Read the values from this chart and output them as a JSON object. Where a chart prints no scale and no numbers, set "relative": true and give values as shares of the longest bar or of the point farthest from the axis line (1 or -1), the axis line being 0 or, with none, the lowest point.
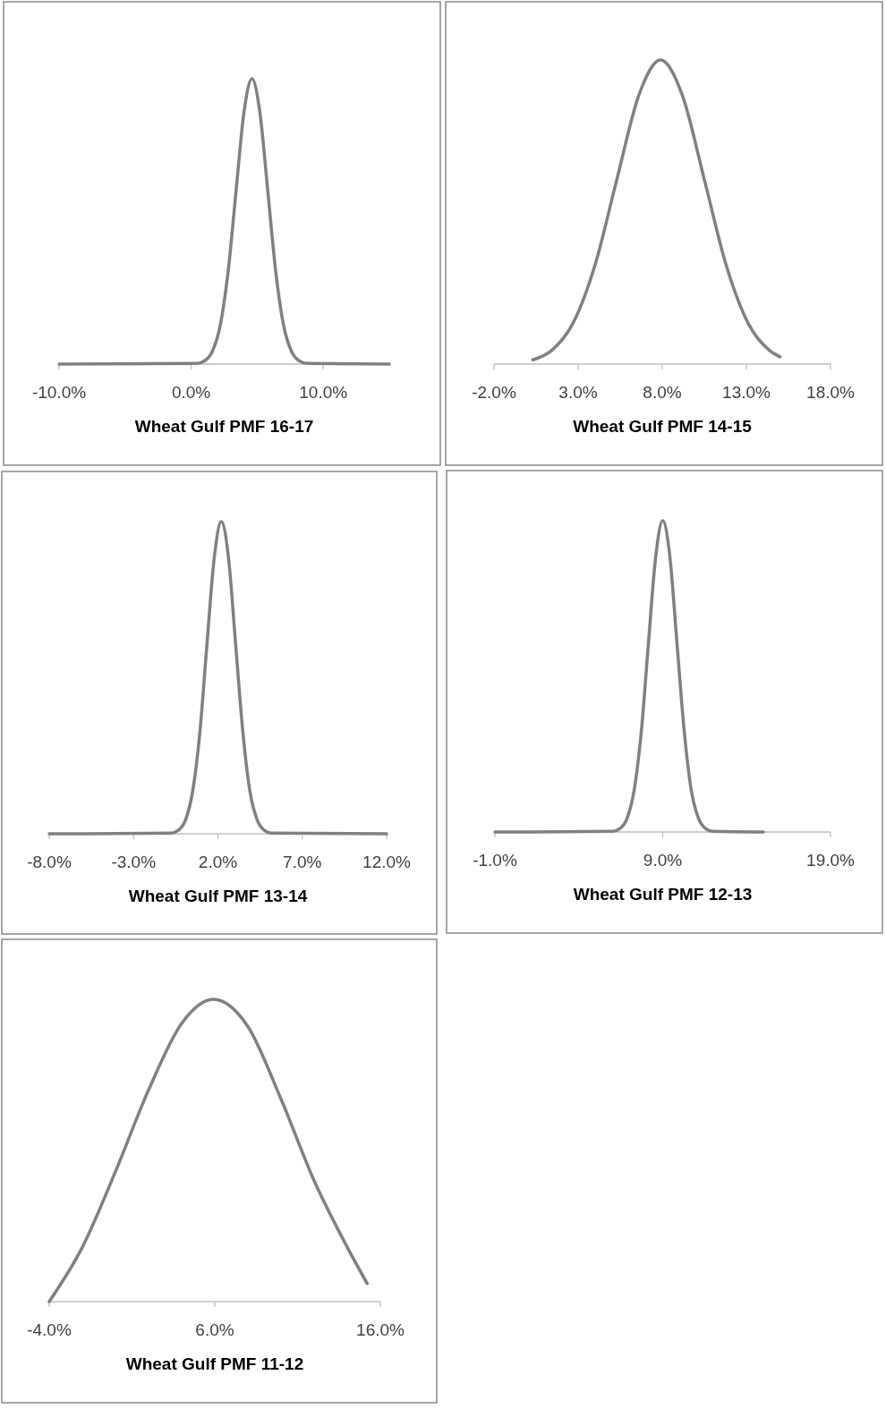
{
  "chart_data": [
    {
      "type": "line",
      "relative": true,
      "xlabel": "Wheat Gulf PMF 16-17",
      "xlim": [
        -10,
        15
      ],
      "xticks": [
        {
          "value": -10,
          "label": "-10.0%"
        },
        {
          "value": 0,
          "label": "0.0%"
        },
        {
          "value": 10,
          "label": "10.0%"
        }
      ],
      "series": [
        {
          "color": "#808080",
          "x": [
            -10,
            0.4,
            1.0,
            1.6,
            2.2,
            2.8,
            3.4,
            4.0,
            4.6,
            5.2,
            5.8,
            6.4,
            7.0,
            7.6,
            8.2,
            8.8,
            15
          ],
          "values": [
            0,
            0.002,
            0.011,
            0.044,
            0.135,
            0.325,
            0.607,
            0.883,
            1,
            0.883,
            0.607,
            0.325,
            0.135,
            0.044,
            0.011,
            0.002,
            0
          ]
        }
      ]
    },
    {
      "type": "line",
      "relative": true,
      "xlabel": "Wheat Gulf PMF 14-15",
      "xlim": [
        -2,
        18
      ],
      "xticks": [
        {
          "value": -2,
          "label": "-2.0%"
        },
        {
          "value": 3,
          "label": "3.0%"
        },
        {
          "value": 8,
          "label": "8.0%"
        },
        {
          "value": 13,
          "label": "13.0%"
        },
        {
          "value": 18,
          "label": "18.0%"
        }
      ],
      "series": [
        {
          "color": "#808080",
          "x": [
            0.3,
            1.4,
            2.7,
            4.0,
            5.3,
            6.6,
            7.9,
            9.2,
            10.5,
            11.8,
            13.1,
            14.4,
            15.0
          ],
          "values": [
            0.014,
            0.044,
            0.135,
            0.325,
            0.607,
            0.883,
            1,
            0.883,
            0.607,
            0.325,
            0.135,
            0.044,
            0.024
          ]
        }
      ]
    },
    {
      "type": "line",
      "relative": true,
      "xlabel": "Wheat Gulf PMF 13-14",
      "xlim": [
        -8,
        12
      ],
      "xticks": [
        {
          "value": -8,
          "label": "-8.0%"
        },
        {
          "value": -3,
          "label": "-3.0%"
        },
        {
          "value": 2,
          "label": "2.0%"
        },
        {
          "value": 7,
          "label": "7.0%"
        },
        {
          "value": 12,
          "label": "12.0%"
        }
      ],
      "series": [
        {
          "color": "#808080",
          "x": [
            -8,
            -0.78,
            -0.35,
            0.08,
            0.5,
            0.93,
            1.35,
            1.78,
            2.2,
            2.63,
            3.05,
            3.48,
            3.9,
            4.33,
            4.75,
            5.18,
            12
          ],
          "values": [
            0,
            0.002,
            0.011,
            0.044,
            0.135,
            0.325,
            0.607,
            0.883,
            1,
            0.883,
            0.607,
            0.325,
            0.135,
            0.044,
            0.011,
            0.002,
            0
          ]
        }
      ]
    },
    {
      "type": "line",
      "relative": true,
      "xlabel": "Wheat Gulf PMF 12-13",
      "xlim": [
        -1,
        19
      ],
      "xticks": [
        {
          "value": -1,
          "label": "-1.0%"
        },
        {
          "value": 9,
          "label": "9.0%"
        },
        {
          "value": 19,
          "label": "19.0%"
        }
      ],
      "series": [
        {
          "color": "#808080",
          "x": [
            -1,
            6.03,
            6.45,
            6.88,
            7.3,
            7.73,
            8.15,
            8.58,
            9.0,
            9.43,
            9.85,
            10.28,
            10.7,
            11.13,
            11.55,
            11.98,
            15
          ],
          "values": [
            0,
            0.002,
            0.011,
            0.044,
            0.135,
            0.325,
            0.607,
            0.883,
            1,
            0.883,
            0.607,
            0.325,
            0.135,
            0.044,
            0.011,
            0.002,
            0
          ]
        }
      ]
    },
    {
      "type": "line",
      "relative": true,
      "xlabel": "Wheat Gulf PMF 11-12",
      "xlim": [
        -4,
        16
      ],
      "xticks": [
        {
          "value": -4,
          "label": "-4.0%"
        },
        {
          "value": 6,
          "label": "6.0%"
        },
        {
          "value": 16,
          "label": "16.0%"
        }
      ],
      "series": [
        {
          "color": "#808080",
          "x": [
            -4,
            -2,
            0,
            2,
            4,
            5.9,
            8,
            10,
            12,
            14,
            15.2
          ],
          "values": [
            0,
            0.18,
            0.43,
            0.7,
            0.92,
            1,
            0.91,
            0.67,
            0.4,
            0.18,
            0.06
          ]
        }
      ]
    }
  ]
}
